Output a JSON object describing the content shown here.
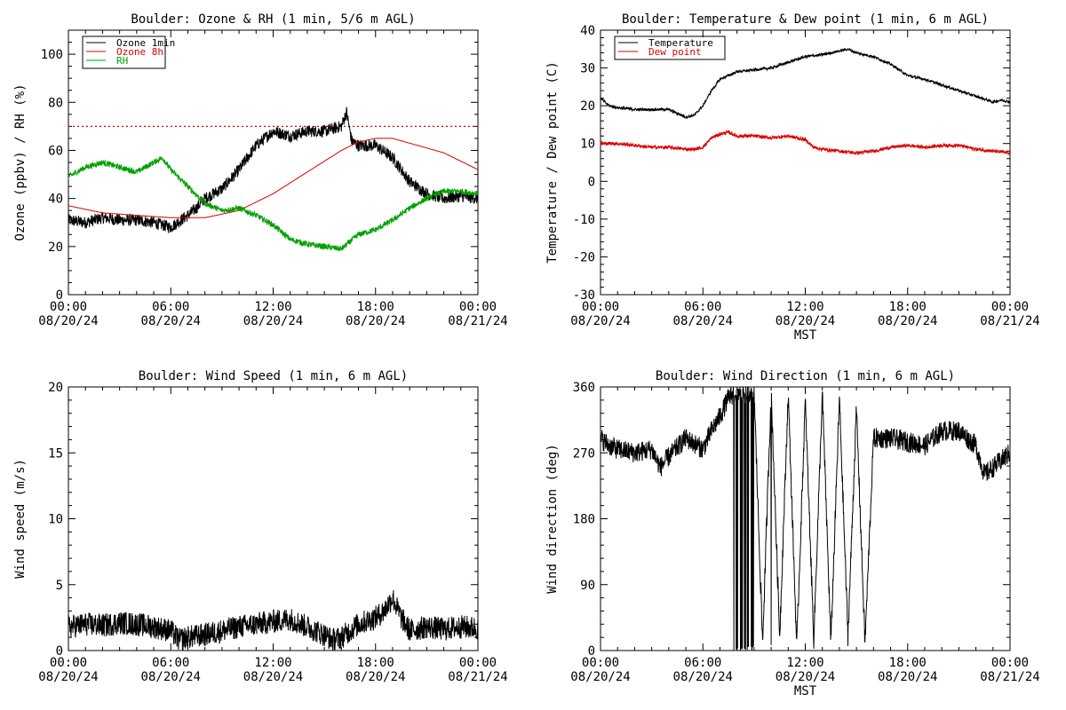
{
  "colors": {
    "black": "#000000",
    "red": "#dd0000",
    "green": "#00a000",
    "bg": "#ffffff"
  },
  "chart_data": [
    {
      "type": "line",
      "title": "Boulder: Ozone & RH (1 min, 5/6 m AGL)",
      "xlabel": "",
      "ylabel": "Ozone (ppbv) / RH (%)",
      "xlim": [
        0,
        24
      ],
      "ylim": [
        0,
        110
      ],
      "yticks": [
        0,
        20,
        40,
        60,
        80,
        100
      ],
      "xtick_labels": [
        {
          "time": "00:00",
          "date": "08/20/24"
        },
        {
          "time": "06:00",
          "date": "08/20/24"
        },
        {
          "time": "12:00",
          "date": "08/20/24"
        },
        {
          "time": "18:00",
          "date": "08/20/24"
        },
        {
          "time": "00:00",
          "date": "08/21/24"
        }
      ],
      "grid": false,
      "legend": "top-left",
      "reference_line": {
        "y": 70,
        "color": "#dd0000",
        "style": "dotted"
      },
      "series": [
        {
          "name": "Ozone 1min",
          "color": "#000000",
          "noise": 2.5,
          "x": [
            0,
            1,
            2,
            3,
            4,
            5,
            6,
            7,
            7.5,
            8,
            9,
            10,
            11,
            12,
            13,
            14,
            15,
            16,
            16.3,
            16.6,
            17,
            18,
            19,
            20,
            21,
            22,
            23,
            24
          ],
          "y": [
            31,
            30,
            32,
            31,
            31,
            30,
            28,
            33,
            36,
            40,
            44,
            52,
            62,
            68,
            66,
            68,
            68,
            70,
            76,
            64,
            62,
            62,
            57,
            47,
            42,
            40,
            41,
            40
          ]
        },
        {
          "name": "Ozone 8h",
          "color": "#dd0000",
          "noise": 0,
          "x": [
            0,
            2,
            4,
            6,
            8,
            10,
            12,
            14,
            16,
            17,
            18,
            19,
            20,
            22,
            24
          ],
          "y": [
            37,
            34,
            33,
            32,
            32,
            35,
            42,
            51,
            60,
            63.5,
            65,
            65,
            63,
            59,
            52
          ]
        },
        {
          "name": "RH",
          "color": "#00a000",
          "noise": 1.2,
          "x": [
            0,
            1,
            2,
            3,
            4,
            5,
            5.5,
            6,
            7,
            8,
            9,
            10,
            11,
            12,
            13,
            14,
            15,
            16,
            17,
            18,
            19,
            20,
            21,
            22,
            23,
            24
          ],
          "y": [
            49,
            53,
            55,
            53,
            51,
            55,
            57,
            52,
            45,
            38,
            35,
            36,
            33,
            29,
            23,
            21,
            20,
            19,
            25,
            27,
            31,
            36,
            40,
            43,
            43,
            42
          ]
        }
      ]
    },
    {
      "type": "line",
      "title": "Boulder: Temperature & Dew point (1 min, 6 m AGL)",
      "xlabel": "MST",
      "ylabel": "Temperature / Dew point (C)",
      "xlim": [
        0,
        24
      ],
      "ylim": [
        -30,
        40
      ],
      "yticks": [
        -30,
        -20,
        -10,
        0,
        10,
        20,
        30,
        40
      ],
      "xtick_labels": [
        {
          "time": "00:00",
          "date": "08/20/24"
        },
        {
          "time": "06:00",
          "date": "08/20/24"
        },
        {
          "time": "12:00",
          "date": "08/20/24"
        },
        {
          "time": "18:00",
          "date": "08/20/24"
        },
        {
          "time": "00:00",
          "date": "08/21/24"
        }
      ],
      "grid": false,
      "legend": "top-left",
      "series": [
        {
          "name": "Temperature",
          "color": "#000000",
          "noise": 0.35,
          "x": [
            0,
            0.5,
            1,
            2,
            3,
            4,
            5,
            5.5,
            6,
            6.5,
            7,
            8,
            9,
            10,
            11,
            12,
            13,
            14,
            14.5,
            15,
            16,
            17,
            18,
            19,
            20,
            21,
            22,
            23,
            23.5,
            24
          ],
          "y": [
            22,
            20,
            19.5,
            19,
            19,
            19,
            17,
            17.5,
            20,
            24,
            27,
            29,
            29.5,
            30,
            31.5,
            33,
            33.5,
            34.5,
            35,
            34,
            33,
            31,
            28,
            27,
            25.5,
            24,
            22.5,
            21,
            21.5,
            21
          ]
        },
        {
          "name": "Dew point",
          "color": "#dd0000",
          "noise": 0.45,
          "x": [
            0,
            1,
            2,
            3,
            4,
            5,
            5.5,
            6,
            6.5,
            7,
            7.5,
            8,
            9,
            10,
            11,
            12,
            12.5,
            13,
            14,
            15,
            16,
            17,
            18,
            19,
            20,
            21,
            22,
            23,
            24
          ],
          "y": [
            10,
            10,
            9.5,
            9,
            9,
            8.5,
            8.5,
            9,
            11.5,
            12.5,
            13,
            12,
            12,
            11.5,
            12,
            11,
            9,
            8.5,
            8,
            7.5,
            8,
            9,
            9.5,
            9,
            9.5,
            9.5,
            8.5,
            8,
            7.5
          ]
        }
      ]
    },
    {
      "type": "line",
      "title": "Boulder: Wind Speed (1 min, 6 m AGL)",
      "xlabel": "",
      "ylabel": "Wind speed (m/s)",
      "xlim": [
        0,
        24
      ],
      "ylim": [
        0,
        20
      ],
      "yticks": [
        0,
        5,
        10,
        15,
        20
      ],
      "xtick_labels": [
        {
          "time": "00:00",
          "date": "08/20/24"
        },
        {
          "time": "06:00",
          "date": "08/20/24"
        },
        {
          "time": "12:00",
          "date": "08/20/24"
        },
        {
          "time": "18:00",
          "date": "08/20/24"
        },
        {
          "time": "00:00",
          "date": "08/21/24"
        }
      ],
      "grid": false,
      "legend": "none",
      "series": [
        {
          "name": "",
          "color": "#000000",
          "noise": 0.9,
          "floor": 0,
          "x": [
            0,
            1,
            2,
            3,
            4,
            5,
            6,
            6.5,
            7,
            8,
            9,
            10,
            11,
            12,
            13,
            14,
            15,
            15.5,
            16,
            17,
            18,
            18.5,
            19,
            19.5,
            20,
            21,
            22,
            23,
            24
          ],
          "y": [
            1.8,
            2,
            1.9,
            2.1,
            2,
            1.8,
            1.5,
            0.8,
            1,
            1.2,
            1.5,
            1.8,
            2,
            2.2,
            2.4,
            1.8,
            1.2,
            0.8,
            1,
            2,
            2.5,
            3,
            4,
            2.5,
            1.5,
            1.8,
            1.6,
            1.8,
            1.7
          ]
        }
      ]
    },
    {
      "type": "line",
      "title": "Boulder: Wind Direction (1 min, 6 m AGL)",
      "xlabel": "MST",
      "ylabel": "Wind direction (deg)",
      "xlim": [
        0,
        24
      ],
      "ylim": [
        0,
        360
      ],
      "yticks": [
        0,
        90,
        180,
        270,
        360
      ],
      "xtick_labels": [
        {
          "time": "00:00",
          "date": "08/20/24"
        },
        {
          "time": "06:00",
          "date": "08/20/24"
        },
        {
          "time": "12:00",
          "date": "08/20/24"
        },
        {
          "time": "18:00",
          "date": "08/20/24"
        },
        {
          "time": "00:00",
          "date": "08/21/24"
        }
      ],
      "grid": false,
      "legend": "none",
      "series": [
        {
          "name": "",
          "color": "#000000",
          "noise": 14,
          "wrap": [
            0,
            360
          ],
          "x": [
            0,
            0.5,
            1,
            2,
            3,
            3.5,
            4,
            5,
            6,
            6.5,
            7,
            7.5,
            8,
            8.5,
            9,
            9.5,
            10,
            10.5,
            11,
            11.5,
            12,
            12.5,
            13,
            13.5,
            14,
            14.5,
            15,
            15.5,
            16,
            17,
            18,
            19,
            20,
            21,
            22,
            22.5,
            23,
            24
          ],
          "y": [
            290,
            280,
            275,
            270,
            275,
            250,
            265,
            290,
            275,
            300,
            320,
            345,
            355,
            350,
            355,
            10,
            355,
            20,
            350,
            5,
            340,
            15,
            350,
            10,
            345,
            20,
            330,
            10,
            290,
            290,
            285,
            280,
            300,
            300,
            280,
            240,
            250,
            270
          ]
        }
      ]
    }
  ]
}
